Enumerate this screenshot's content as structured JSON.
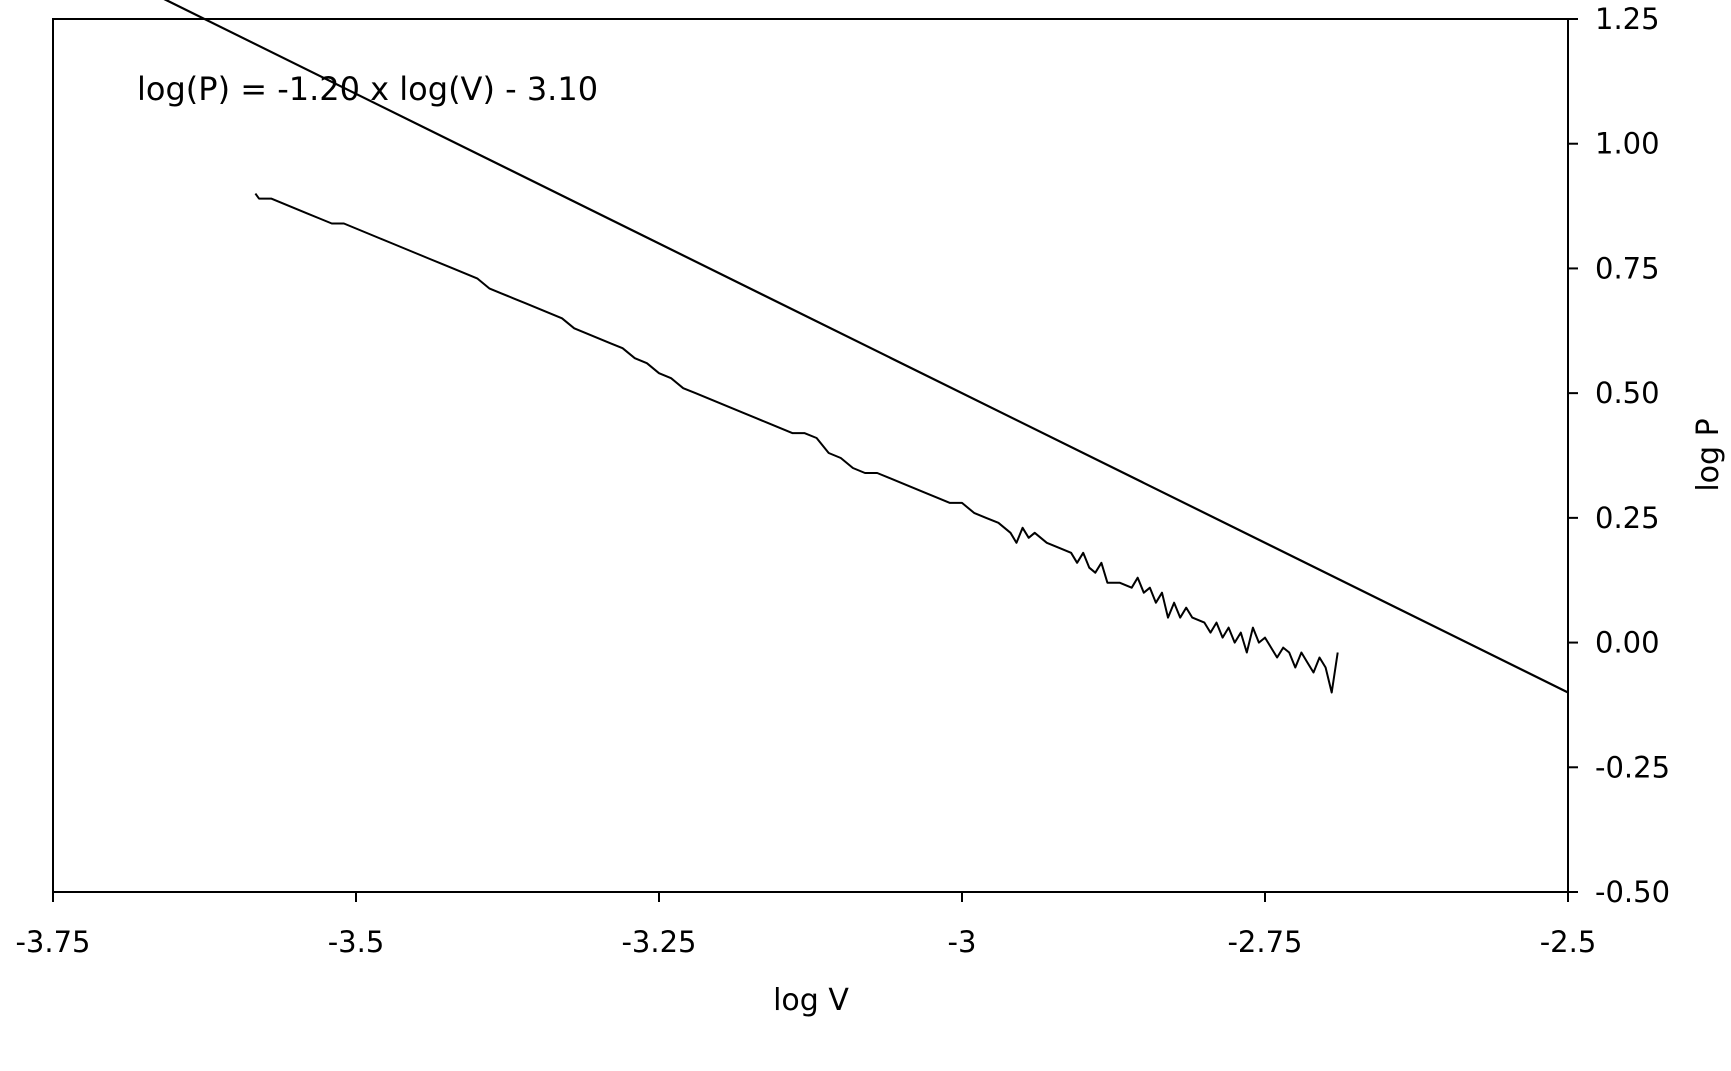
{
  "chart_data": {
    "type": "line",
    "title": "",
    "xlabel": "log V",
    "ylabel": "log P",
    "xlim": [
      -3.75,
      -2.5
    ],
    "ylim": [
      -0.5,
      1.25
    ],
    "x_ticks": [
      -3.75,
      -3.5,
      -3.25,
      -3,
      -2.75,
      -2.5
    ],
    "x_tick_labels": [
      "-3.75",
      "-3.5",
      "-3.25",
      "-3",
      "-2.75",
      "-2.5"
    ],
    "y_ticks": [
      1.25,
      1.0,
      0.75,
      0.5,
      0.25,
      0.0,
      -0.25,
      -0.5
    ],
    "y_tick_labels": [
      "1.25",
      "1.00",
      "0.75",
      "0.50",
      "0.25",
      "0.00",
      "-0.25",
      "-0.50"
    ],
    "y_axis_side": "right",
    "grid": false,
    "legend": "none",
    "annotation": "log(P) = -1.20 x log(V) - 3.10",
    "fit_line": {
      "slope": -1.2,
      "intercept": -3.1,
      "x_range": [
        -3.75,
        -2.5
      ]
    },
    "series": [
      {
        "x": [
          -3.583,
          -3.58,
          -3.57,
          -3.56,
          -3.55,
          -3.54,
          -3.53,
          -3.52,
          -3.51,
          -3.5,
          -3.49,
          -3.48,
          -3.47,
          -3.46,
          -3.45,
          -3.44,
          -3.43,
          -3.42,
          -3.41,
          -3.4,
          -3.39,
          -3.38,
          -3.37,
          -3.36,
          -3.35,
          -3.34,
          -3.33,
          -3.32,
          -3.31,
          -3.3,
          -3.29,
          -3.28,
          -3.27,
          -3.26,
          -3.25,
          -3.24,
          -3.23,
          -3.22,
          -3.21,
          -3.2,
          -3.19,
          -3.18,
          -3.17,
          -3.16,
          -3.15,
          -3.14,
          -3.13,
          -3.12,
          -3.11,
          -3.1,
          -3.09,
          -3.08,
          -3.07,
          -3.06,
          -3.05,
          -3.04,
          -3.03,
          -3.02,
          -3.01,
          -3.0,
          -2.99,
          -2.98,
          -2.97,
          -2.96,
          -2.955,
          -2.95,
          -2.945,
          -2.94,
          -2.93,
          -2.92,
          -2.91,
          -2.905,
          -2.9,
          -2.895,
          -2.89,
          -2.885,
          -2.88,
          -2.87,
          -2.86,
          -2.855,
          -2.85,
          -2.845,
          -2.84,
          -2.835,
          -2.83,
          -2.825,
          -2.82,
          -2.815,
          -2.81,
          -2.8,
          -2.795,
          -2.79,
          -2.785,
          -2.78,
          -2.775,
          -2.77,
          -2.765,
          -2.76,
          -2.755,
          -2.75,
          -2.745,
          -2.74,
          -2.735,
          -2.73,
          -2.725,
          -2.72,
          -2.715,
          -2.71,
          -2.705,
          -2.7,
          -2.695,
          -2.69
        ],
        "y": [
          0.9,
          0.89,
          0.89,
          0.88,
          0.87,
          0.86,
          0.85,
          0.84,
          0.84,
          0.83,
          0.82,
          0.81,
          0.8,
          0.79,
          0.78,
          0.77,
          0.76,
          0.75,
          0.74,
          0.73,
          0.71,
          0.7,
          0.69,
          0.68,
          0.67,
          0.66,
          0.65,
          0.63,
          0.62,
          0.61,
          0.6,
          0.59,
          0.57,
          0.56,
          0.54,
          0.53,
          0.51,
          0.5,
          0.49,
          0.48,
          0.47,
          0.46,
          0.45,
          0.44,
          0.43,
          0.42,
          0.42,
          0.41,
          0.38,
          0.37,
          0.35,
          0.34,
          0.34,
          0.33,
          0.32,
          0.31,
          0.3,
          0.29,
          0.28,
          0.28,
          0.26,
          0.25,
          0.24,
          0.22,
          0.2,
          0.23,
          0.21,
          0.22,
          0.2,
          0.19,
          0.18,
          0.16,
          0.18,
          0.15,
          0.14,
          0.16,
          0.12,
          0.12,
          0.11,
          0.13,
          0.1,
          0.11,
          0.08,
          0.1,
          0.05,
          0.08,
          0.05,
          0.07,
          0.05,
          0.04,
          0.02,
          0.04,
          0.01,
          0.03,
          0.0,
          0.02,
          -0.02,
          0.03,
          0.0,
          0.01,
          -0.01,
          -0.03,
          -0.01,
          -0.02,
          -0.05,
          -0.02,
          -0.04,
          -0.06,
          -0.03,
          -0.05,
          -0.1,
          -0.02
        ]
      }
    ]
  }
}
